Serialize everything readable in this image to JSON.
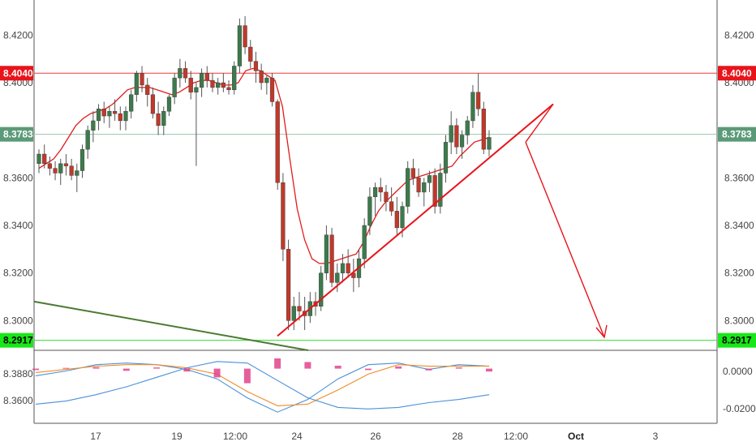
{
  "chart_data": [
    {
      "type": "candlestick",
      "title": "",
      "x_ticks": [
        "17",
        "19",
        "12:00",
        "24",
        "26",
        "28",
        "12:00",
        "Oct",
        "3"
      ],
      "y_ticks": [
        "8.3000",
        "8.3200",
        "8.3400",
        "8.3600",
        "8.4000",
        "8.4200"
      ],
      "ylim": [
        8.2875,
        8.43
      ],
      "grid": false,
      "price_labels": [
        {
          "label": "8.4040",
          "value": 8.404,
          "color": "#e8141a",
          "text_color": "#ffffff"
        },
        {
          "label": "8.3783",
          "value": 8.3783,
          "color": "#5b9a78",
          "text_color": "#ffffff"
        },
        {
          "label": "8.2917",
          "value": 8.2917,
          "color": "#18e818",
          "text_color": "#000000"
        }
      ],
      "horizontal_lines": [
        {
          "value": 8.404,
          "color": "#ef3b3b"
        },
        {
          "value": 8.3783,
          "color": "#9bc4ac"
        },
        {
          "value": 8.2917,
          "color": "#2ee02e"
        }
      ],
      "candle_colors": {
        "up": "#3d7a4c",
        "down": "#c0392b",
        "wick": "#555555"
      },
      "moving_average_color": "#e01c1c",
      "trendlines": [
        {
          "name": "rising-support",
          "points": [
            [
              "23",
              8.2935
            ],
            [
              "29.3",
              8.391
            ]
          ],
          "color": "#e8141a"
        },
        {
          "name": "projection-segment",
          "points": [
            [
              "29.3",
              8.391
            ],
            [
              "29",
              8.375
            ]
          ],
          "color": "#e8141a"
        },
        {
          "name": "projected-drop",
          "points": [
            [
              "29",
              8.375
            ],
            [
              "Oct 2",
              8.293
            ]
          ],
          "color": "#e8141a",
          "arrow": true
        },
        {
          "name": "long-term-down",
          "points": [
            [
              "15.3",
              8.308
            ],
            [
              "24",
              8.2885
            ]
          ],
          "color": "#4c7a33"
        }
      ],
      "series": [
        {
          "name": "",
          "values": [
            [
              8.366,
              8.372,
              8.362,
              8.37
            ],
            [
              8.37,
              8.374,
              8.364,
              8.366
            ],
            [
              8.366,
              8.369,
              8.361,
              8.364
            ],
            [
              8.364,
              8.367,
              8.359,
              8.362
            ],
            [
              8.362,
              8.368,
              8.357,
              8.366
            ],
            [
              8.366,
              8.37,
              8.361,
              8.365
            ],
            [
              8.365,
              8.368,
              8.359,
              8.361
            ],
            [
              8.361,
              8.366,
              8.354,
              8.363
            ],
            [
              8.363,
              8.374,
              8.36,
              8.372
            ],
            [
              8.372,
              8.382,
              8.368,
              8.38
            ],
            [
              8.38,
              8.388,
              8.375,
              8.384
            ],
            [
              8.384,
              8.391,
              8.38,
              8.389
            ],
            [
              8.389,
              8.392,
              8.383,
              8.386
            ],
            [
              8.386,
              8.39,
              8.381,
              8.388
            ],
            [
              8.388,
              8.393,
              8.384,
              8.387
            ],
            [
              8.387,
              8.39,
              8.38,
              8.384
            ],
            [
              8.384,
              8.39,
              8.38,
              8.388
            ],
            [
              8.388,
              8.397,
              8.385,
              8.395
            ],
            [
              8.395,
              8.405,
              8.392,
              8.404
            ],
            [
              8.404,
              8.407,
              8.396,
              8.399
            ],
            [
              8.399,
              8.402,
              8.39,
              8.395
            ],
            [
              8.395,
              8.398,
              8.385,
              8.387
            ],
            [
              8.387,
              8.392,
              8.378,
              8.382
            ],
            [
              8.382,
              8.39,
              8.378,
              8.388
            ],
            [
              8.388,
              8.395,
              8.386,
              8.394
            ],
            [
              8.394,
              8.404,
              8.391,
              8.402
            ],
            [
              8.402,
              8.41,
              8.398,
              8.406
            ],
            [
              8.406,
              8.409,
              8.4,
              8.402
            ],
            [
              8.402,
              8.405,
              8.393,
              8.396
            ],
            [
              8.396,
              8.4,
              8.365,
              8.398
            ],
            [
              8.398,
              8.406,
              8.394,
              8.404
            ],
            [
              8.404,
              8.407,
              8.398,
              8.401
            ],
            [
              8.401,
              8.404,
              8.396,
              8.398
            ],
            [
              8.398,
              8.402,
              8.395,
              8.4
            ],
            [
              8.4,
              8.404,
              8.396,
              8.398
            ],
            [
              8.398,
              8.401,
              8.395,
              8.397
            ],
            [
              8.397,
              8.409,
              8.395,
              8.407
            ],
            [
              8.407,
              8.427,
              8.404,
              8.424
            ],
            [
              8.424,
              8.428,
              8.412,
              8.415
            ],
            [
              8.415,
              8.418,
              8.406,
              8.409
            ],
            [
              8.409,
              8.413,
              8.4,
              8.405
            ],
            [
              8.405,
              8.408,
              8.397,
              8.4
            ],
            [
              8.4,
              8.403,
              8.395,
              8.402
            ],
            [
              8.402,
              8.404,
              8.39,
              8.392
            ],
            [
              8.392,
              8.393,
              8.355,
              8.358
            ],
            [
              8.358,
              8.362,
              8.325,
              8.33
            ],
            [
              8.33,
              8.334,
              8.296,
              8.3
            ],
            [
              8.3,
              8.31,
              8.296,
              8.306
            ],
            [
              8.306,
              8.312,
              8.3,
              8.304
            ],
            [
              8.304,
              8.31,
              8.296,
              8.302
            ],
            [
              8.302,
              8.312,
              8.299,
              8.308
            ],
            [
              8.308,
              8.312,
              8.302,
              8.306
            ],
            [
              8.306,
              8.323,
              8.304,
              8.32
            ],
            [
              8.32,
              8.34,
              8.317,
              8.336
            ],
            [
              8.336,
              8.339,
              8.314,
              8.316
            ],
            [
              8.316,
              8.324,
              8.312,
              8.32
            ],
            [
              8.32,
              8.328,
              8.316,
              8.324
            ],
            [
              8.324,
              8.33,
              8.318,
              8.32
            ],
            [
              8.32,
              8.326,
              8.312,
              8.318
            ],
            [
              8.318,
              8.33,
              8.314,
              8.326
            ],
            [
              8.326,
              8.343,
              8.322,
              8.34
            ],
            [
              8.34,
              8.356,
              8.336,
              8.352
            ],
            [
              8.352,
              8.358,
              8.344,
              8.356
            ],
            [
              8.356,
              8.36,
              8.35,
              8.354
            ],
            [
              8.354,
              8.357,
              8.346,
              8.35
            ],
            [
              8.35,
              8.356,
              8.344,
              8.346
            ],
            [
              8.346,
              8.352,
              8.336,
              8.339
            ],
            [
              8.339,
              8.35,
              8.335,
              8.348
            ],
            [
              8.348,
              8.367,
              8.345,
              8.364
            ],
            [
              8.364,
              8.368,
              8.357,
              8.36
            ],
            [
              8.36,
              8.364,
              8.352,
              8.354
            ],
            [
              8.354,
              8.36,
              8.348,
              8.358
            ],
            [
              8.358,
              8.363,
              8.354,
              8.361
            ],
            [
              8.361,
              8.364,
              8.345,
              8.348
            ],
            [
              8.348,
              8.366,
              8.345,
              8.362
            ],
            [
              8.362,
              8.378,
              8.358,
              8.375
            ],
            [
              8.375,
              8.388,
              8.37,
              8.382
            ],
            [
              8.382,
              8.385,
              8.37,
              8.373
            ],
            [
              8.373,
              8.38,
              8.368,
              8.378
            ],
            [
              8.378,
              8.386,
              8.374,
              8.384
            ],
            [
              8.384,
              8.399,
              8.381,
              8.396
            ],
            [
              8.396,
              8.404,
              8.386,
              8.389
            ],
            [
              8.389,
              8.392,
              8.37,
              8.372
            ],
            [
              8.372,
              8.38,
              8.369,
              8.377
            ]
          ]
        },
        {
          "name": "",
          "type": "line",
          "values": [
            8.364,
            8.366,
            8.368,
            8.372,
            8.377,
            8.382,
            8.385,
            8.387,
            8.388,
            8.389,
            8.391,
            8.394,
            8.397,
            8.398,
            8.398,
            8.398,
            8.397,
            8.396,
            8.395,
            8.396,
            8.398,
            8.4,
            8.401,
            8.401,
            8.4,
            8.399,
            8.399,
            8.4,
            8.405,
            8.406,
            8.405,
            8.403,
            8.401,
            8.39,
            8.368,
            8.347,
            8.334,
            8.326,
            8.324,
            8.324,
            8.325,
            8.326,
            8.327,
            8.328,
            8.333,
            8.34,
            8.346,
            8.35,
            8.353,
            8.356,
            8.359,
            8.36,
            8.361,
            8.362,
            8.363,
            8.364,
            8.365,
            8.369,
            8.372,
            8.375,
            8.376,
            8.377
          ]
        }
      ]
    },
    {
      "type": "line",
      "title": "",
      "y_ticks": [
        "0.0000",
        "-0.0200"
      ],
      "left_scale_ticks": [
        "8.3880",
        "8.3600"
      ],
      "series": [
        {
          "name": "",
          "color": "#4a90d9",
          "values": [
            8.379,
            8.382,
            8.386,
            8.387,
            8.386,
            8.383,
            8.377,
            8.365,
            8.356,
            8.364,
            8.377,
            8.386,
            8.387,
            8.383,
            8.386,
            8.385
          ]
        },
        {
          "name": "",
          "color": "#f08c28",
          "values": [
            8.381,
            8.383,
            8.385,
            8.386,
            8.386,
            8.384,
            8.38,
            8.369,
            8.36,
            8.361,
            8.37,
            8.38,
            8.386,
            8.385,
            8.385,
            8.385
          ]
        },
        {
          "name": "",
          "color": "#4a90d9",
          "values": [
            8.361,
            8.363,
            8.367,
            8.372,
            8.378,
            8.384,
            8.388,
            8.387,
            8.376,
            8.365,
            8.359,
            8.358,
            8.359,
            8.362,
            8.364,
            8.367
          ]
        },
        {
          "name": "",
          "type": "bar",
          "color": "#e0438c",
          "values": [
            -0.001,
            0.0005,
            0.001,
            -0.0015,
            0.0008,
            -0.002,
            -0.006,
            -0.01,
            0.007,
            0.0045,
            0.002,
            -0.001,
            0.0015,
            -0.0012,
            0.0008,
            -0.002
          ]
        }
      ]
    }
  ]
}
